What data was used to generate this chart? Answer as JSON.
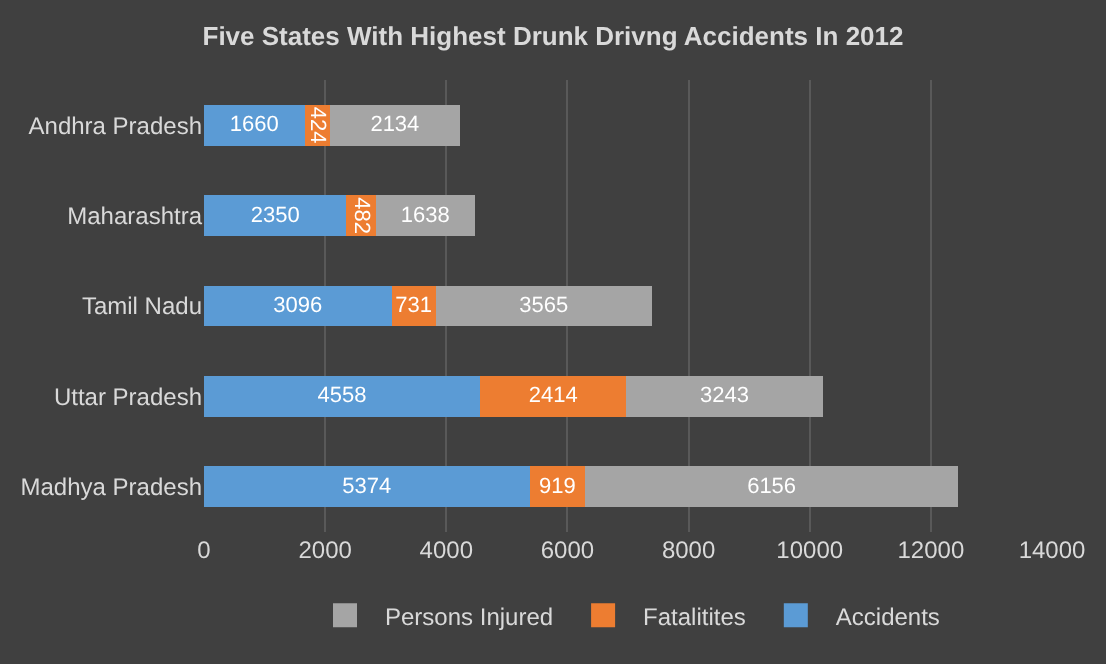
{
  "chart_data": {
    "type": "bar",
    "orientation": "horizontal",
    "stacked": true,
    "title": "Five States With Highest Drunk Drivng Accidents In 2012",
    "categories": [
      "Andhra Pradesh",
      "Maharashtra",
      "Tamil Nadu",
      "Uttar Pradesh",
      "Madhya Pradesh"
    ],
    "series": [
      {
        "name": "Accidents",
        "color": "#5b9bd5",
        "values": [
          1660,
          2350,
          3096,
          4558,
          5374
        ]
      },
      {
        "name": "Fatalitites",
        "color": "#ed7d31",
        "values": [
          424,
          482,
          731,
          2414,
          919
        ]
      },
      {
        "name": "Persons Injured",
        "color": "#a5a5a5",
        "values": [
          2134,
          1638,
          3565,
          3243,
          6156
        ]
      }
    ],
    "xlim": [
      0,
      14000
    ],
    "xticks": [
      0,
      2000,
      4000,
      6000,
      8000,
      10000,
      12000,
      14000
    ],
    "grid": "x",
    "legend": "bottom",
    "data_labels": true
  }
}
